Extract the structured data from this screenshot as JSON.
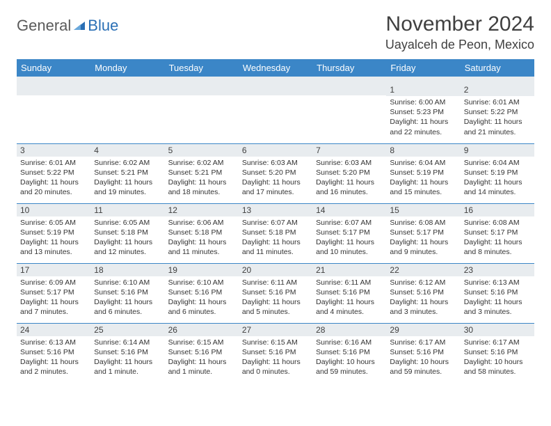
{
  "logo": {
    "general": "General",
    "blue": "Blue"
  },
  "title": "November 2024",
  "location": "Uayalceh de Peon, Mexico",
  "colors": {
    "header_bg": "#3b86c7",
    "header_text": "#ffffff",
    "daynum_bg": "#e8ecef",
    "border": "#3b86c7",
    "logo_blue": "#2a6fb5",
    "logo_gray": "#5a5a5a"
  },
  "weekdays": [
    "Sunday",
    "Monday",
    "Tuesday",
    "Wednesday",
    "Thursday",
    "Friday",
    "Saturday"
  ],
  "weeks": [
    [
      {
        "n": "",
        "empty": true
      },
      {
        "n": "",
        "empty": true
      },
      {
        "n": "",
        "empty": true
      },
      {
        "n": "",
        "empty": true
      },
      {
        "n": "",
        "empty": true
      },
      {
        "n": "1",
        "sunrise": "Sunrise: 6:00 AM",
        "sunset": "Sunset: 5:23 PM",
        "day1": "Daylight: 11 hours",
        "day2": "and 22 minutes."
      },
      {
        "n": "2",
        "sunrise": "Sunrise: 6:01 AM",
        "sunset": "Sunset: 5:22 PM",
        "day1": "Daylight: 11 hours",
        "day2": "and 21 minutes."
      }
    ],
    [
      {
        "n": "3",
        "sunrise": "Sunrise: 6:01 AM",
        "sunset": "Sunset: 5:22 PM",
        "day1": "Daylight: 11 hours",
        "day2": "and 20 minutes."
      },
      {
        "n": "4",
        "sunrise": "Sunrise: 6:02 AM",
        "sunset": "Sunset: 5:21 PM",
        "day1": "Daylight: 11 hours",
        "day2": "and 19 minutes."
      },
      {
        "n": "5",
        "sunrise": "Sunrise: 6:02 AM",
        "sunset": "Sunset: 5:21 PM",
        "day1": "Daylight: 11 hours",
        "day2": "and 18 minutes."
      },
      {
        "n": "6",
        "sunrise": "Sunrise: 6:03 AM",
        "sunset": "Sunset: 5:20 PM",
        "day1": "Daylight: 11 hours",
        "day2": "and 17 minutes."
      },
      {
        "n": "7",
        "sunrise": "Sunrise: 6:03 AM",
        "sunset": "Sunset: 5:20 PM",
        "day1": "Daylight: 11 hours",
        "day2": "and 16 minutes."
      },
      {
        "n": "8",
        "sunrise": "Sunrise: 6:04 AM",
        "sunset": "Sunset: 5:19 PM",
        "day1": "Daylight: 11 hours",
        "day2": "and 15 minutes."
      },
      {
        "n": "9",
        "sunrise": "Sunrise: 6:04 AM",
        "sunset": "Sunset: 5:19 PM",
        "day1": "Daylight: 11 hours",
        "day2": "and 14 minutes."
      }
    ],
    [
      {
        "n": "10",
        "sunrise": "Sunrise: 6:05 AM",
        "sunset": "Sunset: 5:19 PM",
        "day1": "Daylight: 11 hours",
        "day2": "and 13 minutes."
      },
      {
        "n": "11",
        "sunrise": "Sunrise: 6:05 AM",
        "sunset": "Sunset: 5:18 PM",
        "day1": "Daylight: 11 hours",
        "day2": "and 12 minutes."
      },
      {
        "n": "12",
        "sunrise": "Sunrise: 6:06 AM",
        "sunset": "Sunset: 5:18 PM",
        "day1": "Daylight: 11 hours",
        "day2": "and 11 minutes."
      },
      {
        "n": "13",
        "sunrise": "Sunrise: 6:07 AM",
        "sunset": "Sunset: 5:18 PM",
        "day1": "Daylight: 11 hours",
        "day2": "and 11 minutes."
      },
      {
        "n": "14",
        "sunrise": "Sunrise: 6:07 AM",
        "sunset": "Sunset: 5:17 PM",
        "day1": "Daylight: 11 hours",
        "day2": "and 10 minutes."
      },
      {
        "n": "15",
        "sunrise": "Sunrise: 6:08 AM",
        "sunset": "Sunset: 5:17 PM",
        "day1": "Daylight: 11 hours",
        "day2": "and 9 minutes."
      },
      {
        "n": "16",
        "sunrise": "Sunrise: 6:08 AM",
        "sunset": "Sunset: 5:17 PM",
        "day1": "Daylight: 11 hours",
        "day2": "and 8 minutes."
      }
    ],
    [
      {
        "n": "17",
        "sunrise": "Sunrise: 6:09 AM",
        "sunset": "Sunset: 5:17 PM",
        "day1": "Daylight: 11 hours",
        "day2": "and 7 minutes."
      },
      {
        "n": "18",
        "sunrise": "Sunrise: 6:10 AM",
        "sunset": "Sunset: 5:16 PM",
        "day1": "Daylight: 11 hours",
        "day2": "and 6 minutes."
      },
      {
        "n": "19",
        "sunrise": "Sunrise: 6:10 AM",
        "sunset": "Sunset: 5:16 PM",
        "day1": "Daylight: 11 hours",
        "day2": "and 6 minutes."
      },
      {
        "n": "20",
        "sunrise": "Sunrise: 6:11 AM",
        "sunset": "Sunset: 5:16 PM",
        "day1": "Daylight: 11 hours",
        "day2": "and 5 minutes."
      },
      {
        "n": "21",
        "sunrise": "Sunrise: 6:11 AM",
        "sunset": "Sunset: 5:16 PM",
        "day1": "Daylight: 11 hours",
        "day2": "and 4 minutes."
      },
      {
        "n": "22",
        "sunrise": "Sunrise: 6:12 AM",
        "sunset": "Sunset: 5:16 PM",
        "day1": "Daylight: 11 hours",
        "day2": "and 3 minutes."
      },
      {
        "n": "23",
        "sunrise": "Sunrise: 6:13 AM",
        "sunset": "Sunset: 5:16 PM",
        "day1": "Daylight: 11 hours",
        "day2": "and 3 minutes."
      }
    ],
    [
      {
        "n": "24",
        "sunrise": "Sunrise: 6:13 AM",
        "sunset": "Sunset: 5:16 PM",
        "day1": "Daylight: 11 hours",
        "day2": "and 2 minutes."
      },
      {
        "n": "25",
        "sunrise": "Sunrise: 6:14 AM",
        "sunset": "Sunset: 5:16 PM",
        "day1": "Daylight: 11 hours",
        "day2": "and 1 minute."
      },
      {
        "n": "26",
        "sunrise": "Sunrise: 6:15 AM",
        "sunset": "Sunset: 5:16 PM",
        "day1": "Daylight: 11 hours",
        "day2": "and 1 minute."
      },
      {
        "n": "27",
        "sunrise": "Sunrise: 6:15 AM",
        "sunset": "Sunset: 5:16 PM",
        "day1": "Daylight: 11 hours",
        "day2": "and 0 minutes."
      },
      {
        "n": "28",
        "sunrise": "Sunrise: 6:16 AM",
        "sunset": "Sunset: 5:16 PM",
        "day1": "Daylight: 10 hours",
        "day2": "and 59 minutes."
      },
      {
        "n": "29",
        "sunrise": "Sunrise: 6:17 AM",
        "sunset": "Sunset: 5:16 PM",
        "day1": "Daylight: 10 hours",
        "day2": "and 59 minutes."
      },
      {
        "n": "30",
        "sunrise": "Sunrise: 6:17 AM",
        "sunset": "Sunset: 5:16 PM",
        "day1": "Daylight: 10 hours",
        "day2": "and 58 minutes."
      }
    ]
  ]
}
